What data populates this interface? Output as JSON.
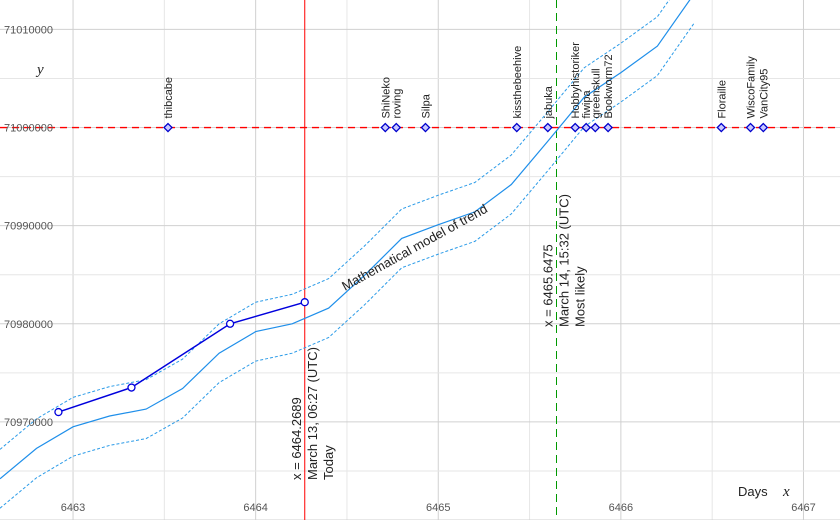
{
  "chart_data": {
    "type": "line",
    "x_axis": {
      "label": "Days",
      "variable": "x",
      "range": [
        6462.6,
        6467.2
      ],
      "ticks": [
        6463,
        6464,
        6465,
        6466,
        6467
      ],
      "tick_labels": [
        "6463",
        "6464",
        "6465",
        "6466",
        "6467"
      ]
    },
    "y_axis": {
      "variable": "y",
      "range": [
        70960000,
        71013000
      ],
      "ticks": [
        70970000,
        70980000,
        70990000,
        71000000,
        71010000
      ],
      "tick_labels": [
        "70970000",
        "70980000",
        "70990000",
        "71000000",
        "71010000"
      ]
    },
    "grid": true,
    "target_line": {
      "y": 71000000,
      "color": "#ff0000",
      "style": "dashed"
    },
    "observations": {
      "name": "",
      "color": "#0000dd",
      "points": [
        {
          "x": 6462.92,
          "y": 70971000
        },
        {
          "x": 6463.32,
          "y": 70973500
        },
        {
          "x": 6463.86,
          "y": 70980000
        },
        {
          "x": 6464.2689,
          "y": 70982200
        }
      ]
    },
    "model": {
      "label": "Mathematical model of trend",
      "color": "#1f8fea",
      "band_color": "#2b9be8",
      "band_width": 3000,
      "x": [
        6462.6,
        6462.8,
        6463.0,
        6463.2,
        6463.4,
        6463.6,
        6463.8,
        6464.0,
        6464.2,
        6464.4,
        6464.6,
        6464.8,
        6465.0,
        6465.2,
        6465.4,
        6465.6,
        6465.8,
        6466.0,
        6466.2,
        6466.4
      ],
      "y": [
        70964200,
        70967300,
        70969500,
        70970600,
        70971300,
        70973400,
        70977000,
        70979200,
        70980000,
        70981600,
        70985000,
        70988700,
        70990100,
        70991400,
        70994200,
        70998600,
        71003100,
        71005600,
        71008300,
        71013600
      ]
    },
    "today": {
      "x": 6464.2689,
      "color": "#ff0000",
      "lines": [
        "x = 6464.2689",
        "March 13, 06:27 (UTC)",
        "Today"
      ]
    },
    "most_likely": {
      "x": 6465.6475,
      "color": "#009900",
      "lines": [
        "x = 6465.6475",
        "March 14, 15:32 (UTC)",
        "Most likely"
      ]
    },
    "users": {
      "y": 71000000,
      "color": "#0000cc",
      "fill": "#c8c8ff",
      "items": [
        {
          "name": "thibcabe",
          "x": 6463.52
        },
        {
          "name": "ShiNeko",
          "x": 6464.71
        },
        {
          "name": "roving",
          "x": 6464.77
        },
        {
          "name": "Silpa",
          "x": 6464.93
        },
        {
          "name": "kissthebeehive",
          "x": 6465.43
        },
        {
          "name": "jabuka",
          "x": 6465.6
        },
        {
          "name": "Hobbyhistoriker",
          "x": 6465.75
        },
        {
          "name": "fiwipa",
          "x": 6465.81
        },
        {
          "name": "greenskull",
          "x": 6465.86
        },
        {
          "name": "Bookworm72",
          "x": 6465.93
        },
        {
          "name": "Floraille",
          "x": 6466.55
        },
        {
          "name": "WiscoFamily",
          "x": 6466.71
        },
        {
          "name": "VanCity95",
          "x": 6466.78
        }
      ]
    }
  }
}
